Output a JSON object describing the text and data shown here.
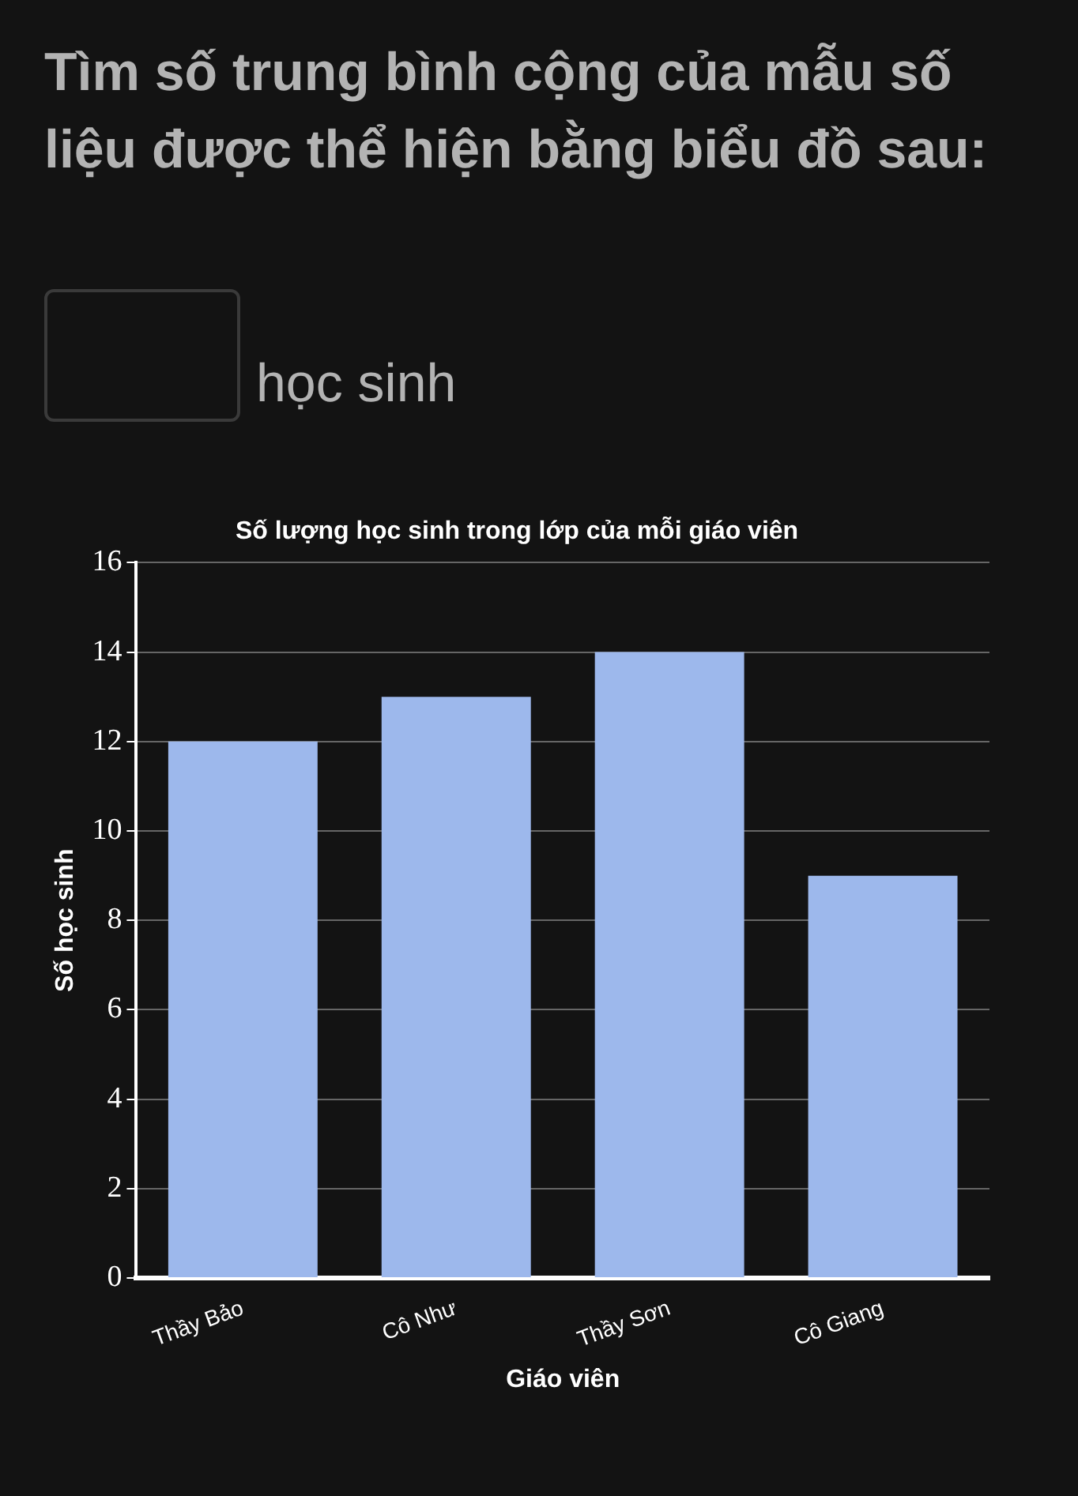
{
  "chart_data": {
    "type": "bar",
    "title": "Số lượng học sinh trong lớp của mỗi giáo viên",
    "xlabel": "Giáo viên",
    "ylabel": "Số học sinh",
    "annotations": [
      "Tìm số trung bình cộng của mẫu số liệu được thể hiện bằng biểu đồ sau:",
      "học sinh"
    ],
    "categories": [
      "Thầy Bảo",
      "Cô Như",
      "Thầy Sơn",
      "Cô Giang"
    ],
    "values": [
      12,
      13,
      14,
      9
    ],
    "color": "#9db8ec",
    "ylim": [
      0,
      16
    ],
    "yticks": [
      0,
      2,
      4,
      6,
      8,
      10,
      12,
      14,
      16
    ],
    "grid": "y",
    "legend": false
  }
}
